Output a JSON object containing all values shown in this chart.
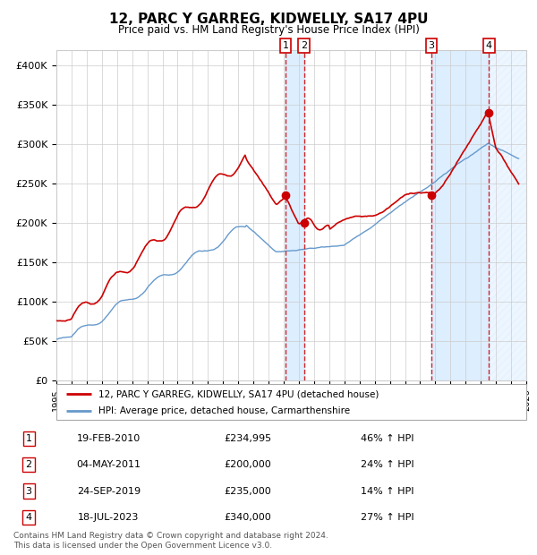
{
  "title": "12, PARC Y GARREG, KIDWELLY, SA17 4PU",
  "subtitle": "Price paid vs. HM Land Registry's House Price Index (HPI)",
  "footer1": "Contains HM Land Registry data © Crown copyright and database right 2024.",
  "footer2": "This data is licensed under the Open Government Licence v3.0.",
  "legend_red": "12, PARC Y GARREG, KIDWELLY, SA17 4PU (detached house)",
  "legend_blue": "HPI: Average price, detached house, Carmarthenshire",
  "transactions": [
    {
      "num": 1,
      "date": "19-FEB-2010",
      "price": "£234,995",
      "change": "46% ↑ HPI",
      "year": 2010.12
    },
    {
      "num": 2,
      "date": "04-MAY-2011",
      "price": "£200,000",
      "change": "24% ↑ HPI",
      "year": 2011.34
    },
    {
      "num": 3,
      "date": "24-SEP-2019",
      "price": "£235,000",
      "change": "14% ↑ HPI",
      "year": 2019.73
    },
    {
      "num": 4,
      "date": "18-JUL-2023",
      "price": "£340,000",
      "change": "27% ↑ HPI",
      "year": 2023.54
    }
  ],
  "transaction_prices": [
    234995,
    200000,
    235000,
    340000
  ],
  "xlim": [
    1995,
    2026
  ],
  "ylim": [
    0,
    420000
  ],
  "yticks": [
    0,
    50000,
    100000,
    150000,
    200000,
    250000,
    300000,
    350000,
    400000
  ],
  "ytick_labels": [
    "£0",
    "£50K",
    "£100K",
    "£150K",
    "£200K",
    "£250K",
    "£300K",
    "£350K",
    "£400K"
  ],
  "red_color": "#cc0000",
  "blue_color": "#6699cc",
  "shade_color": "#ddeeff",
  "grid_color": "#cccccc",
  "background_color": "#ffffff"
}
